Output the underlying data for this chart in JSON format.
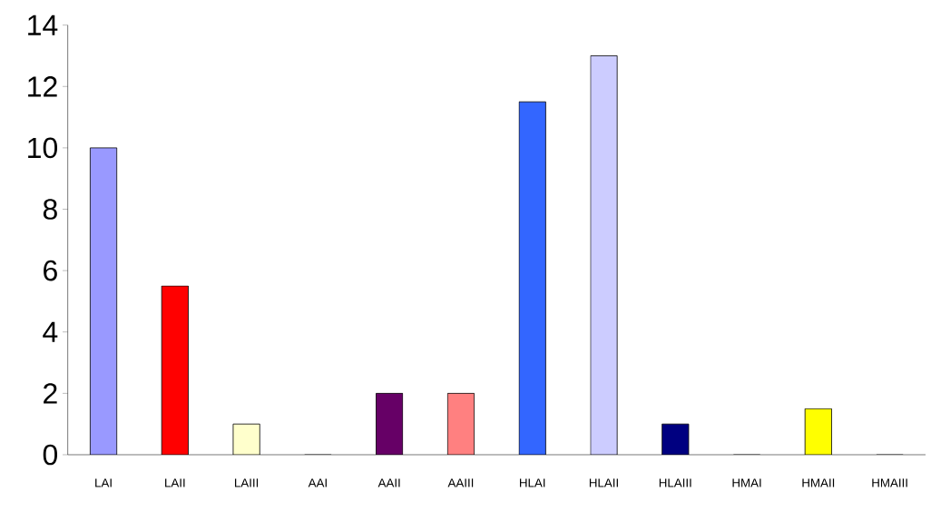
{
  "chart_data": {
    "type": "bar",
    "categories": [
      "LAI",
      "LAII",
      "LAIII",
      "AAI",
      "AAII",
      "AAIII",
      "HLAI",
      "HLAII",
      "HLAIII",
      "HMAI",
      "HMAII",
      "HMAIII"
    ],
    "values": [
      10,
      5.5,
      1,
      0,
      2,
      2,
      11.5,
      13,
      1,
      0,
      1.5,
      0
    ],
    "colors": [
      "#9999ff",
      "#ff0000",
      "#ffffcc",
      "#99cccc",
      "#660066",
      "#ff8080",
      "#3366ff",
      "#ccccff",
      "#000080",
      "#cc00cc",
      "#ffff00",
      "#00cccc"
    ],
    "ylim": [
      0,
      14
    ],
    "yticks": [
      0,
      2,
      4,
      6,
      8,
      10,
      12,
      14
    ]
  }
}
